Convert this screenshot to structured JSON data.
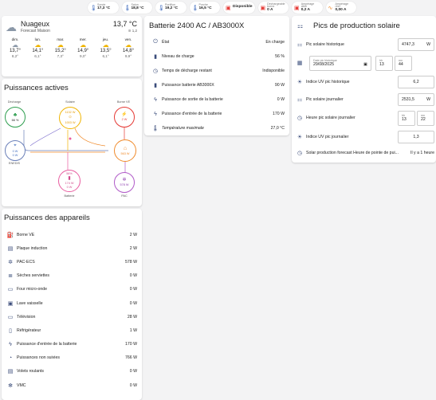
{
  "chips": [
    {
      "label": "Sonde",
      "value": "17,3 °C",
      "icon": "thermometer-icon",
      "color": "#3f6bbd"
    },
    {
      "label": "Salon",
      "value": "18,8 °C",
      "icon": "thermometer-icon",
      "color": "#3f6bbd"
    },
    {
      "label": "Portillon",
      "value": "19,2 °C",
      "icon": "thermometer-icon",
      "color": "#3f6bbd"
    },
    {
      "label": "Porche",
      "value": "16,5 °C",
      "icon": "thermometer-icon",
      "color": "#3f6bbd"
    },
    {
      "label": "",
      "value": "Disponible",
      "icon": "ev-plug-icon",
      "color": "#e53935"
    },
    {
      "label": "Déchargeable borne",
      "value": "0 A",
      "icon": "charger-icon",
      "color": "#e53935"
    },
    {
      "label": "Ampérage cible",
      "value": "0,2 A",
      "icon": "charger-icon",
      "color": "#e53935"
    },
    {
      "label": "Ampérage réel",
      "value": "0,00 A",
      "icon": "wave-icon",
      "color": "#f08b2c"
    }
  ],
  "weather": {
    "condition": "Nuageux",
    "location": "Forecast Maison",
    "temp": "13,7 °C",
    "humidity": "97 %",
    "wind": "1,2",
    "days": [
      {
        "d": "dim.",
        "hi": "13,7°",
        "lo": "8,2°"
      },
      {
        "d": "lun.",
        "hi": "14,1°",
        "lo": "6,1°"
      },
      {
        "d": "mar.",
        "hi": "15,2°",
        "lo": "7,3°"
      },
      {
        "d": "mer.",
        "hi": "14,9°",
        "lo": "9,0°"
      },
      {
        "d": "jeu.",
        "hi": "13,5°",
        "lo": "6,1°"
      },
      {
        "d": "ven.",
        "hi": "14,8°",
        "lo": "9,9°"
      }
    ]
  },
  "flow": {
    "title": "Puissances actives",
    "decharge": {
      "label": "Décharge",
      "value": "66 %"
    },
    "solaire": {
      "label": "Solaire",
      "top": "1132 W",
      "value": "1003 W"
    },
    "borne": {
      "label": "Borne VE",
      "value": "2 W"
    },
    "enedis": {
      "label": "ENEDIS",
      "a": "0 W",
      "b": "0 W"
    },
    "maison": {
      "value": "563 W"
    },
    "batterie": {
      "label": "Batterie",
      "pct": "56%",
      "a": "174 W",
      "b": "0 W"
    },
    "pac": {
      "label": "PAC",
      "value": "578 W"
    }
  },
  "battery": {
    "title": "Batterie 2400 AC / AB3000X",
    "rows": [
      {
        "n": "État",
        "v": "En charge",
        "icon": "power-icon"
      },
      {
        "n": "Niveau de charge",
        "v": "56 %",
        "icon": "battery-icon"
      },
      {
        "n": "Temps de décharge restant",
        "v": "Indisponible",
        "icon": "timer-icon"
      },
      {
        "n": "Puissance batterie AB3000X",
        "v": "90 W",
        "icon": "battery-charging-icon"
      },
      {
        "n": "Puissance de sortie de la batterie",
        "v": "0 W",
        "icon": "bolt-icon"
      },
      {
        "n": "Puissance d'entrée de la batterie",
        "v": "170 W",
        "icon": "bolt-icon"
      },
      {
        "n": "Température maximale",
        "v": "27,0 °C",
        "icon": "thermometer-icon"
      }
    ]
  },
  "solar": {
    "title": "Pics de production solaire",
    "pic_hist_label": "Pic solaire historique",
    "pic_hist_value": "4747,3",
    "pic_hist_unit": "W",
    "date_label": "Date pic historique",
    "date_value": "29/08/2025",
    "h_label": "hh",
    "h": "13",
    "m_label": "mn",
    "m": "44",
    "uv_hist_label": "Indice UV pic historique",
    "uv_hist": "6,2",
    "pic_jour_label": "Pic solaire journalier",
    "pic_jour_value": "2531,5",
    "pic_jour_unit": "W",
    "heure_label": "Heure pic solaire journalier",
    "heure_h": "13",
    "heure_m": "22",
    "uv_jour_label": "Indice UV pic journalier",
    "uv_jour": "1,3",
    "forecast_label": "Solar production forecast Heure de pointe de pui...",
    "forecast_value": "Il y a 1 heure"
  },
  "devices": {
    "title": "Puissances des appareils",
    "rows": [
      {
        "n": "Borne VE",
        "v": "2 W",
        "icon": "ev-station-icon"
      },
      {
        "n": "Plaque induction",
        "v": "2 W",
        "icon": "cooktop-icon"
      },
      {
        "n": "PAC-ECS",
        "v": "578 W",
        "icon": "heat-pump-icon"
      },
      {
        "n": "Sèches serviettes",
        "v": "0 W",
        "icon": "radiator-icon"
      },
      {
        "n": "Four micro-onde",
        "v": "0 W",
        "icon": "microwave-icon"
      },
      {
        "n": "Lave vaisselle",
        "v": "0 W",
        "icon": "dishwasher-icon"
      },
      {
        "n": "Télévision",
        "v": "28 W",
        "icon": "television-icon"
      },
      {
        "n": "Réfrigérateur",
        "v": "1 W",
        "icon": "fridge-icon"
      },
      {
        "n": "Puissance d'entrée de la batterie",
        "v": "170 W",
        "icon": "bolt-icon"
      },
      {
        "n": "Puissances non suivies",
        "v": "766 W",
        "icon": "meter-icon"
      },
      {
        "n": "Volets roulants",
        "v": "0 W",
        "icon": "shutter-icon"
      },
      {
        "n": "VMC",
        "v": "0 W",
        "icon": "fan-icon"
      }
    ]
  }
}
